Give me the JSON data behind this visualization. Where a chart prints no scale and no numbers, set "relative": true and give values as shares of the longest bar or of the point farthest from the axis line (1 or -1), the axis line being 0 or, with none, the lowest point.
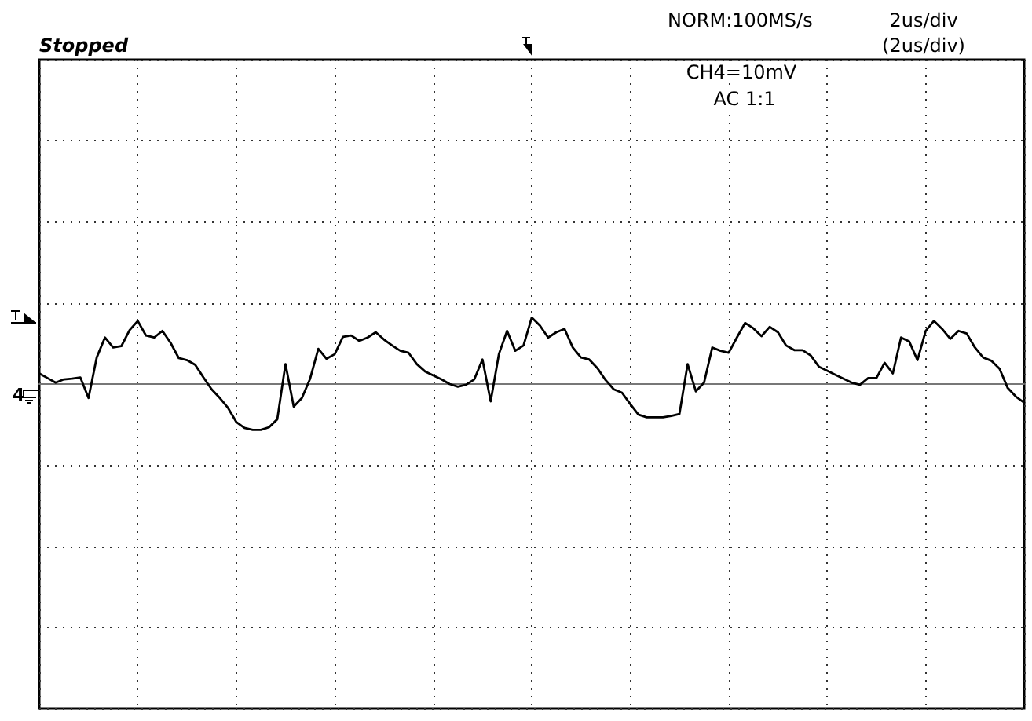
{
  "chart_data": {
    "type": "line",
    "relative": true,
    "categories": [
      null,
      null,
      null,
      null,
      null,
      null,
      null,
      null,
      null,
      null,
      null,
      null,
      null,
      null,
      null,
      null,
      null,
      null,
      null,
      null,
      null,
      null,
      null,
      null,
      null,
      null,
      null,
      null,
      null,
      null,
      null,
      null,
      null,
      null,
      null,
      null,
      null,
      null,
      null,
      null,
      null,
      null,
      null,
      null,
      null,
      null,
      null,
      null,
      null,
      null,
      null,
      null,
      null,
      null,
      null,
      null,
      null,
      null,
      null,
      null,
      null,
      null,
      null,
      null,
      null,
      null,
      null,
      null,
      null,
      null,
      null,
      null,
      null,
      null,
      null,
      null,
      null,
      null,
      null,
      null,
      null,
      null,
      null,
      null,
      null,
      null,
      null,
      null,
      null,
      null,
      null,
      null,
      null,
      null,
      null,
      null,
      null,
      null,
      null,
      null,
      null,
      null,
      null,
      null,
      null,
      null,
      null,
      null,
      null,
      null,
      null,
      null,
      null,
      null,
      null,
      null,
      null,
      null,
      null,
      null,
      null
    ],
    "series": [
      {
        "color": "#000000",
        "values": [
          0.16,
          0.09,
          0.02,
          0.07,
          0.08,
          0.1,
          -0.21,
          0.4,
          0.7,
          0.55,
          0.57,
          0.81,
          0.95,
          0.73,
          0.7,
          0.8,
          0.62,
          0.39,
          0.36,
          0.29,
          0.1,
          -0.08,
          -0.21,
          -0.36,
          -0.57,
          -0.66,
          -0.69,
          -0.69,
          -0.65,
          -0.53,
          0.3,
          -0.34,
          -0.21,
          0.08,
          0.53,
          0.38,
          0.45,
          0.71,
          0.73,
          0.65,
          0.7,
          0.78,
          0.67,
          0.58,
          0.5,
          0.47,
          0.3,
          0.19,
          0.13,
          0.07,
          0.0,
          -0.04,
          -0.01,
          0.07,
          0.37,
          -0.26,
          0.45,
          0.8,
          0.5,
          0.58,
          1.0,
          0.88,
          0.7,
          0.78,
          0.83,
          0.55,
          0.4,
          0.37,
          0.24,
          0.06,
          -0.08,
          -0.13,
          -0.3,
          -0.46,
          -0.5,
          -0.5,
          -0.5,
          -0.48,
          -0.45,
          0.3,
          -0.11,
          0.02,
          0.55,
          0.5,
          0.47,
          0.7,
          0.92,
          0.84,
          0.72,
          0.86,
          0.78,
          0.58,
          0.51,
          0.51,
          0.43,
          0.26,
          0.2,
          0.14,
          0.08,
          0.02,
          -0.01,
          0.09,
          0.09,
          0.32,
          0.16,
          0.7,
          0.64,
          0.36,
          0.8,
          0.95,
          0.83,
          0.68,
          0.8,
          0.76,
          0.55,
          0.4,
          0.35,
          0.23,
          -0.06,
          -0.19,
          -0.28
        ]
      }
    ],
    "grid": true,
    "line_style": "solid",
    "annotations": [
      "Stopped",
      "NORM:100MS/s",
      "2us/div",
      "(2us/div)",
      "CH4=10mV",
      "AC 1:1",
      "4"
    ]
  }
}
